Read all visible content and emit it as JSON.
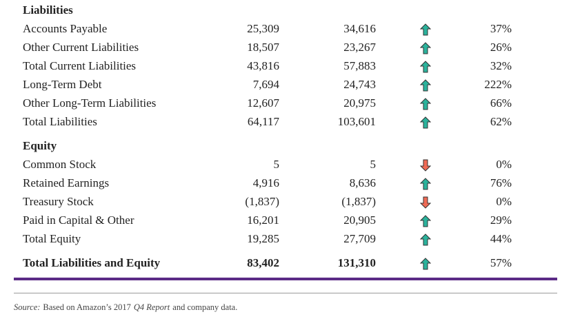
{
  "sections": [
    {
      "title": "Liabilities",
      "rows": [
        [
          "Accounts Payable",
          "25,309",
          "34,616",
          "37%"
        ],
        [
          "Other Current Liabilities",
          "18,507",
          "23,267",
          "26%"
        ],
        [
          "Total Current Liabilities",
          "43,816",
          "57,883",
          "32%"
        ],
        [
          "Long-Term Debt",
          "7,694",
          "24,743",
          "222%"
        ],
        [
          "Other Long-Term Liabilities",
          "12,607",
          "20,975",
          "66%"
        ],
        [
          "Total Liabilities",
          "64,117",
          "103,601",
          "62%"
        ]
      ]
    },
    {
      "title": "Equity",
      "rows": [
        [
          "Common Stock",
          "5",
          "5",
          "0%"
        ],
        [
          "Retained Earnings",
          "4,916",
          "8,636",
          "76%"
        ],
        [
          "Treasury Stock",
          "(1,837)",
          "(1,837)",
          "0%"
        ],
        [
          "Paid in Capital & Other",
          "16,201",
          "20,905",
          "29%"
        ],
        [
          "Total Equity",
          "19,285",
          "27,709",
          "44%"
        ]
      ]
    }
  ],
  "total": [
    "Total Liabilities and Equity",
    "83,402",
    "131,310",
    "57%"
  ],
  "source": {
    "label": "Source:",
    "text1": "Based on Amazon’s 2017",
    "emphasis": "Q4 Report",
    "text2": "and company data."
  }
}
